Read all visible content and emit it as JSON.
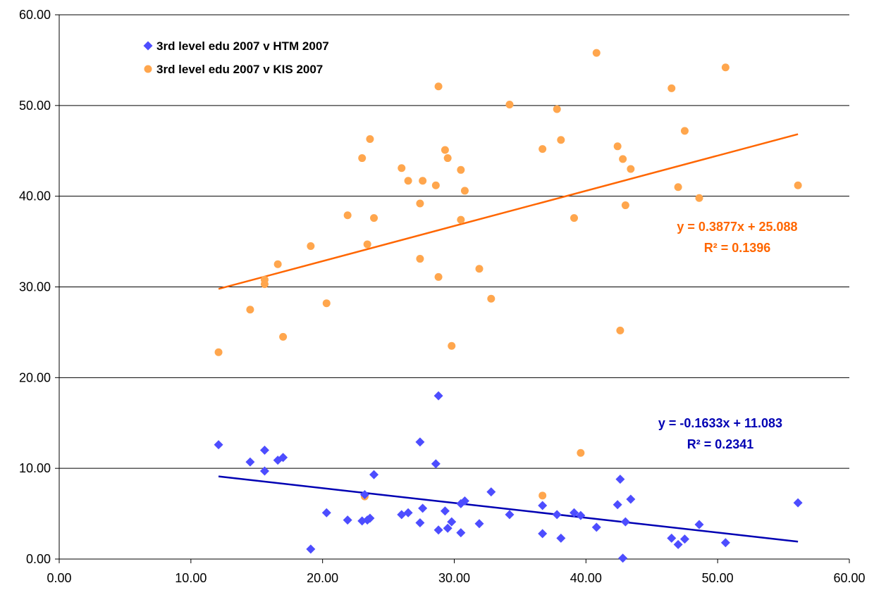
{
  "chart_data": {
    "type": "scatter",
    "xlim": [
      0,
      60
    ],
    "ylim": [
      0,
      60
    ],
    "x_ticks": [
      "0.00",
      "10.00",
      "20.00",
      "30.00",
      "40.00",
      "50.00",
      "60.00"
    ],
    "y_ticks": [
      "0.00",
      "10.00",
      "20.00",
      "30.00",
      "40.00",
      "50.00",
      "60.00"
    ],
    "grid": "horizontal",
    "legend_position": "top-left",
    "series": [
      {
        "name": "3rd level edu 2007 v HTM 2007",
        "color": "#4d4dff",
        "marker": "diamond",
        "points": [
          [
            12.1,
            12.6
          ],
          [
            14.5,
            10.7
          ],
          [
            15.6,
            12.0
          ],
          [
            15.6,
            9.7
          ],
          [
            16.6,
            10.9
          ],
          [
            17.0,
            11.2
          ],
          [
            19.1,
            1.1
          ],
          [
            20.3,
            5.1
          ],
          [
            21.9,
            4.3
          ],
          [
            23.0,
            4.2
          ],
          [
            23.2,
            7.1
          ],
          [
            23.4,
            4.3
          ],
          [
            23.6,
            4.5
          ],
          [
            23.9,
            9.3
          ],
          [
            26.0,
            4.9
          ],
          [
            26.5,
            5.1
          ],
          [
            27.4,
            12.9
          ],
          [
            27.4,
            4.0
          ],
          [
            27.6,
            5.6
          ],
          [
            28.6,
            10.5
          ],
          [
            28.8,
            18.0
          ],
          [
            28.8,
            3.2
          ],
          [
            29.3,
            5.3
          ],
          [
            29.5,
            3.4
          ],
          [
            29.8,
            4.1
          ],
          [
            30.5,
            6.1
          ],
          [
            30.5,
            2.9
          ],
          [
            30.8,
            6.4
          ],
          [
            31.9,
            3.9
          ],
          [
            32.8,
            7.4
          ],
          [
            34.2,
            4.9
          ],
          [
            36.7,
            5.9
          ],
          [
            36.7,
            2.8
          ],
          [
            37.8,
            4.9
          ],
          [
            38.1,
            2.3
          ],
          [
            39.1,
            5.1
          ],
          [
            39.6,
            4.8
          ],
          [
            40.8,
            3.5
          ],
          [
            42.4,
            6.0
          ],
          [
            42.6,
            8.8
          ],
          [
            42.8,
            0.1
          ],
          [
            43.0,
            4.1
          ],
          [
            43.4,
            6.6
          ],
          [
            46.5,
            2.3
          ],
          [
            47.0,
            1.6
          ],
          [
            47.5,
            2.2
          ],
          [
            48.6,
            3.8
          ],
          [
            50.6,
            1.8
          ],
          [
            56.1,
            6.2
          ]
        ],
        "trendline": {
          "equation": "y = -0.1633x + 11.083",
          "r2": "R² = 0.2341",
          "slope": -0.1633,
          "intercept": 11.083,
          "x_range": [
            12.1,
            56.1
          ],
          "color": "#0000b3"
        }
      },
      {
        "name": "3rd level edu 2007 v KIS 2007",
        "color": "#ffa64d",
        "marker": "circle",
        "points": [
          [
            12.1,
            22.8
          ],
          [
            14.5,
            27.5
          ],
          [
            15.6,
            30.8
          ],
          [
            15.6,
            30.3
          ],
          [
            16.6,
            32.5
          ],
          [
            17.0,
            24.5
          ],
          [
            19.1,
            34.5
          ],
          [
            20.3,
            28.2
          ],
          [
            21.9,
            37.9
          ],
          [
            23.0,
            44.2
          ],
          [
            23.2,
            6.9
          ],
          [
            23.4,
            34.7
          ],
          [
            23.6,
            46.3
          ],
          [
            23.9,
            37.6
          ],
          [
            26.0,
            43.1
          ],
          [
            26.5,
            41.7
          ],
          [
            27.4,
            39.2
          ],
          [
            27.4,
            33.1
          ],
          [
            27.6,
            41.7
          ],
          [
            28.6,
            41.2
          ],
          [
            28.8,
            52.1
          ],
          [
            28.8,
            31.1
          ],
          [
            29.3,
            45.1
          ],
          [
            29.5,
            44.2
          ],
          [
            29.8,
            23.5
          ],
          [
            30.5,
            42.9
          ],
          [
            30.5,
            37.4
          ],
          [
            30.8,
            40.6
          ],
          [
            31.9,
            32.0
          ],
          [
            32.8,
            28.7
          ],
          [
            34.2,
            50.1
          ],
          [
            36.7,
            45.2
          ],
          [
            36.7,
            7.0
          ],
          [
            37.8,
            49.6
          ],
          [
            38.1,
            46.2
          ],
          [
            39.1,
            37.6
          ],
          [
            39.6,
            11.7
          ],
          [
            40.8,
            55.8
          ],
          [
            42.4,
            45.5
          ],
          [
            42.6,
            25.2
          ],
          [
            42.8,
            44.1
          ],
          [
            43.0,
            39.0
          ],
          [
            43.4,
            43.0
          ],
          [
            46.5,
            51.9
          ],
          [
            47.0,
            41.0
          ],
          [
            47.5,
            47.2
          ],
          [
            48.6,
            39.8
          ],
          [
            50.6,
            54.2
          ],
          [
            56.1,
            41.2
          ]
        ],
        "trendline": {
          "equation": "y = 0.3877x + 25.088",
          "r2": "R² = 0.1396",
          "slope": 0.3877,
          "intercept": 25.088,
          "x_range": [
            12.1,
            56.1
          ],
          "color": "#ff6600"
        }
      }
    ]
  }
}
